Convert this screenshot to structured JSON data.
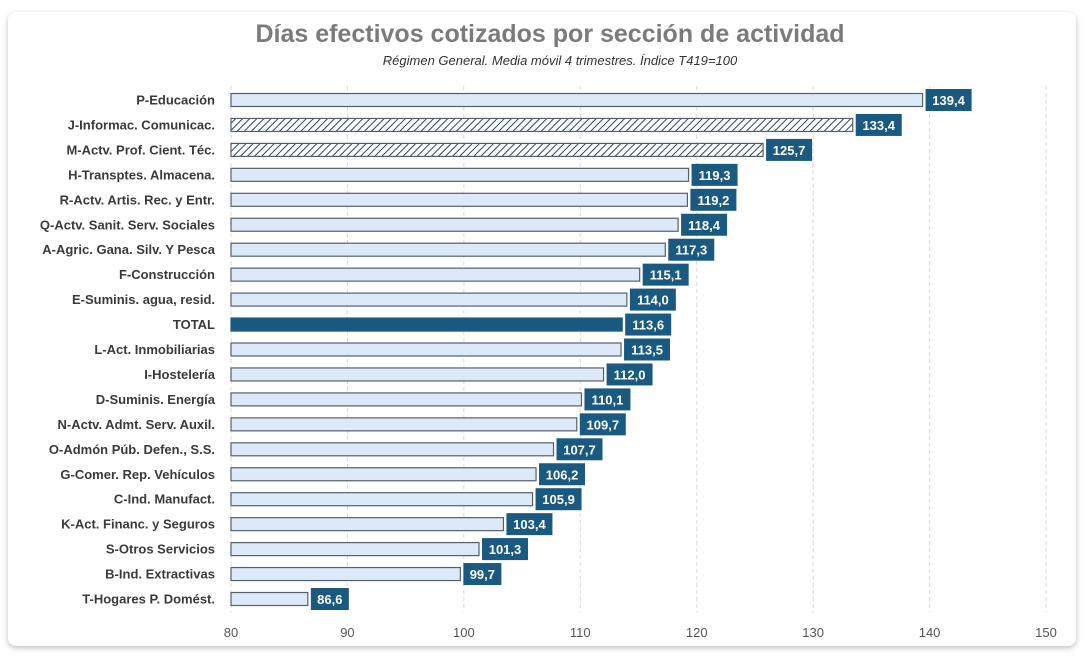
{
  "chart_data": {
    "type": "bar",
    "orientation": "horizontal",
    "title": "Días efectivos cotizados por sección de actividad",
    "subtitle": "Régimen General. Media móvil 4 trimestres. Índice T419=100",
    "xlabel": "",
    "ylabel": "",
    "xlim": [
      80,
      150
    ],
    "xticks": [
      80,
      90,
      100,
      110,
      120,
      130,
      140,
      150
    ],
    "grid": "vertical dashed",
    "categories": [
      "P-Educación",
      "J-Informac. Comunicac.",
      "M-Actv. Prof. Cient. Téc.",
      "H-Transptes. Almacena.",
      "R-Actv. Artis. Rec. y Entr.",
      "Q-Actv. Sanit. Serv. Sociales",
      "A-Agric. Gana. Silv. Y Pesca",
      "F-Construcción",
      "E-Suminis. agua, resid.",
      "TOTAL",
      "L-Act. Inmobiliarias",
      "I-Hostelería",
      "D-Suminis. Energía",
      "N-Actv. Admt. Serv. Auxil.",
      "O-Admón Púb. Defen., S.S.",
      "G-Comer. Rep. Vehículos",
      "C-Ind. Manufact.",
      "K-Act. Financ. y Seguros",
      "S-Otros Servicios",
      "B-Ind. Extractivas",
      "T-Hogares P. Domést."
    ],
    "values": [
      139.4,
      133.4,
      125.7,
      119.3,
      119.2,
      118.4,
      117.3,
      115.1,
      114.0,
      113.6,
      113.5,
      112.0,
      110.1,
      109.7,
      107.7,
      106.2,
      105.9,
      103.4,
      101.3,
      99.7,
      86.6
    ],
    "labels": [
      "139,4",
      "133,4",
      "125,7",
      "119,3",
      "119,2",
      "118,4",
      "117,3",
      "115,1",
      "114,0",
      "113,6",
      "113,5",
      "112,0",
      "110,1",
      "109,7",
      "107,7",
      "106,2",
      "105,9",
      "103,4",
      "101,3",
      "99,7",
      "86,6"
    ],
    "styles": [
      "plain",
      "hatched",
      "hatched",
      "plain",
      "plain",
      "plain",
      "plain",
      "plain",
      "plain",
      "total",
      "plain",
      "plain",
      "plain",
      "plain",
      "plain",
      "plain",
      "plain",
      "plain",
      "plain",
      "plain",
      "plain"
    ],
    "colors": {
      "bar_fill": "#dce9f8",
      "bar_stroke": "#56606b",
      "total": "#1b5a80",
      "label_bg": "#1b5a80",
      "hatch": "#2b4660"
    }
  }
}
